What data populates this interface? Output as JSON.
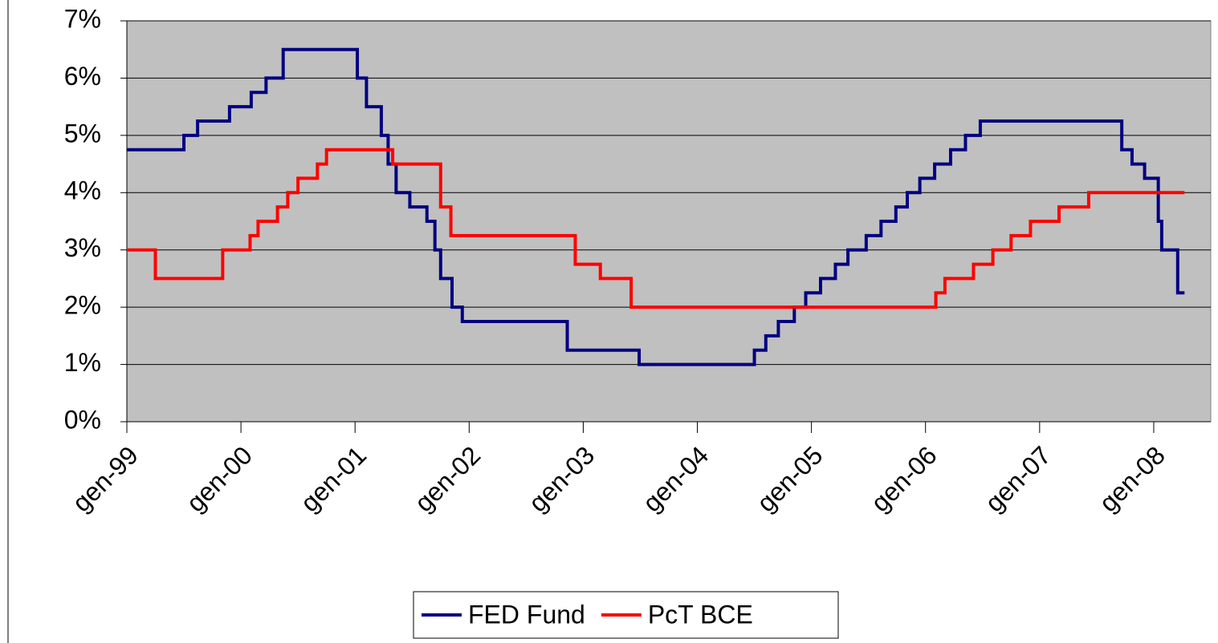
{
  "chart_data": {
    "type": "line",
    "step": true,
    "xlim": [
      1999.0,
      2008.5
    ],
    "xticks": [
      {
        "value": 1999,
        "label": "gen-99"
      },
      {
        "value": 2000,
        "label": "gen-00"
      },
      {
        "value": 2001,
        "label": "gen-01"
      },
      {
        "value": 2002,
        "label": "gen-02"
      },
      {
        "value": 2003,
        "label": "gen-03"
      },
      {
        "value": 2004,
        "label": "gen-04"
      },
      {
        "value": 2005,
        "label": "gen-05"
      },
      {
        "value": 2006,
        "label": "gen-06"
      },
      {
        "value": 2007,
        "label": "gen-07"
      },
      {
        "value": 2008,
        "label": "gen-08"
      }
    ],
    "ylim": [
      0,
      7
    ],
    "yticks": [
      {
        "value": 0,
        "label": "0%"
      },
      {
        "value": 1,
        "label": "1%"
      },
      {
        "value": 2,
        "label": "2%"
      },
      {
        "value": 3,
        "label": "3%"
      },
      {
        "value": 4,
        "label": "4%"
      },
      {
        "value": 5,
        "label": "5%"
      },
      {
        "value": 6,
        "label": "6%"
      },
      {
        "value": 7,
        "label": "7%"
      }
    ],
    "grid": true,
    "plot_background": "#c0c0c0",
    "legend": "bottom",
    "series": [
      {
        "name": "FED Fund",
        "color": "#000080",
        "x": [
          1999.0,
          1999.5,
          1999.62,
          1999.9,
          2000.09,
          2000.22,
          2000.37,
          2001.02,
          2001.1,
          2001.23,
          2001.29,
          2001.36,
          2001.48,
          2001.63,
          2001.7,
          2001.75,
          2001.85,
          2001.94,
          2002.86,
          2003.49,
          2004.5,
          2004.6,
          2004.71,
          2004.85,
          2004.95,
          2005.08,
          2005.21,
          2005.32,
          2005.48,
          2005.61,
          2005.74,
          2005.84,
          2005.95,
          2006.08,
          2006.22,
          2006.35,
          2006.48,
          2007.72,
          2007.81,
          2007.92,
          2008.04,
          2008.07,
          2008.21,
          2008.27
        ],
        "values": [
          4.75,
          5.0,
          5.25,
          5.5,
          5.75,
          6.0,
          6.5,
          6.0,
          5.5,
          5.0,
          4.5,
          4.0,
          3.75,
          3.5,
          3.0,
          2.5,
          2.0,
          1.75,
          1.25,
          1.0,
          1.25,
          1.5,
          1.75,
          2.0,
          2.25,
          2.5,
          2.75,
          3.0,
          3.25,
          3.5,
          3.75,
          4.0,
          4.25,
          4.5,
          4.75,
          5.0,
          5.25,
          4.75,
          4.5,
          4.25,
          3.5,
          3.0,
          2.25,
          2.25
        ]
      },
      {
        "name": "PcT BCE",
        "color": "#ff0000",
        "x": [
          1999.0,
          1999.25,
          1999.84,
          2000.08,
          2000.15,
          2000.32,
          2000.41,
          2000.5,
          2000.67,
          2000.75,
          2001.33,
          2001.75,
          2001.84,
          2002.93,
          2003.15,
          2003.42,
          2006.09,
          2006.17,
          2006.42,
          2006.59,
          2006.75,
          2006.92,
          2007.17,
          2007.43,
          2008.27
        ],
        "values": [
          3.0,
          2.5,
          3.0,
          3.25,
          3.5,
          3.75,
          4.0,
          4.25,
          4.5,
          4.75,
          4.5,
          3.75,
          3.25,
          2.75,
          2.5,
          2.0,
          2.25,
          2.5,
          2.75,
          3.0,
          3.25,
          3.5,
          3.75,
          4.0,
          4.0
        ]
      }
    ]
  }
}
